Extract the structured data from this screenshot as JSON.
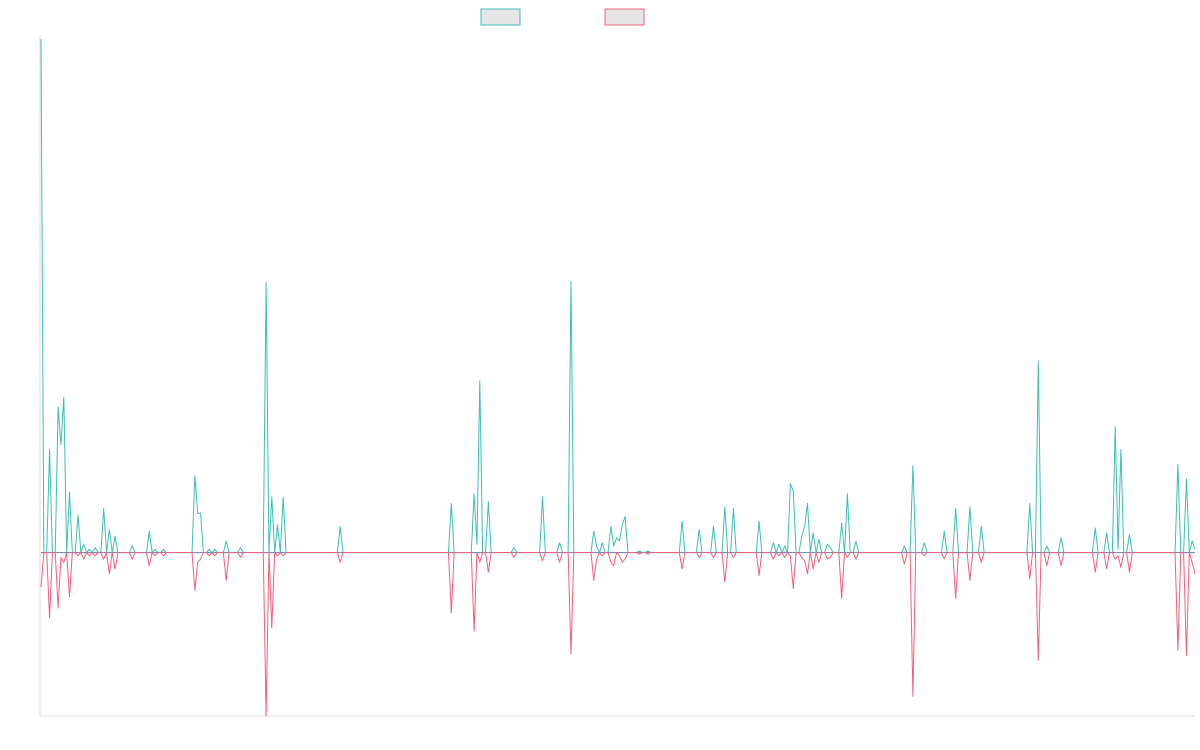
{
  "chart_data": {
    "type": "line",
    "title": "",
    "xlabel": "",
    "ylabel": "",
    "grid": false,
    "legend": "top-center",
    "ylim": [
      -1.0,
      3.16
    ],
    "colors": {
      "series_a": "#3dbfb5",
      "series_b": "#f0607f",
      "baseline": "#7a8fb0",
      "axis": "#dddddd",
      "legend_fill": "#e6e6e6"
    },
    "series": [
      {
        "name": "",
        "color": "#3dbfb5",
        "values": [
          3.14,
          0,
          0,
          0.63,
          0,
          0,
          0.89,
          0.66,
          0.95,
          0,
          0.37,
          0,
          0,
          0.23,
          0,
          0.05,
          0,
          0.02,
          0,
          0.03,
          0,
          0,
          0.27,
          0,
          0.14,
          0,
          0.1,
          0,
          0,
          0,
          0,
          0,
          0.04,
          0,
          0,
          0,
          0,
          0,
          0.13,
          0,
          0.02,
          0,
          0,
          0.02,
          0,
          0,
          0,
          0,
          0,
          0,
          0,
          0,
          0,
          0,
          0.47,
          0.24,
          0.24,
          0,
          0,
          0.02,
          0,
          0.02,
          0,
          0,
          0,
          0.07,
          0,
          0,
          0,
          0,
          0.03,
          0,
          0,
          0,
          0,
          0,
          0,
          0,
          0,
          1.65,
          0,
          0.34,
          0,
          0.17,
          0,
          0.34,
          0,
          0,
          0,
          0,
          0,
          0,
          0,
          0,
          0,
          0,
          0,
          0,
          0,
          0,
          0,
          0,
          0,
          0,
          0,
          0.16,
          0,
          0,
          0,
          0,
          0,
          0,
          0,
          0,
          0,
          0,
          0,
          0,
          0,
          0,
          0,
          0,
          0,
          0,
          0,
          0,
          0,
          0,
          0,
          0,
          0,
          0,
          0,
          0,
          0,
          0,
          0,
          0,
          0,
          0,
          0,
          0,
          0,
          0,
          0.3,
          0,
          0,
          0,
          0,
          0,
          0,
          0,
          0.36,
          0.05,
          1.05,
          0,
          0,
          0.31,
          0,
          0,
          0,
          0,
          0,
          0,
          0,
          0,
          0.03,
          0,
          0,
          0,
          0,
          0,
          0,
          0,
          0,
          0,
          0.34,
          0,
          0,
          0,
          0,
          0,
          0.06,
          0,
          0,
          0,
          1.66,
          0,
          0,
          0,
          0,
          0,
          0,
          0,
          0.13,
          0.04,
          0,
          0.06,
          0,
          0,
          0.16,
          0.04,
          0.09,
          0.07,
          0.17,
          0.22,
          0,
          0,
          0,
          0,
          0.01,
          0,
          0,
          0.01,
          0,
          0,
          0,
          0,
          0,
          0,
          0,
          0,
          0,
          0,
          0,
          0.19,
          0,
          0,
          0,
          0,
          0,
          0.14,
          0,
          0,
          0,
          0,
          0.16,
          0,
          0,
          0,
          0.28,
          0,
          0,
          0.27,
          0,
          0,
          0,
          0,
          0,
          0,
          0,
          0,
          0.19,
          0,
          0,
          0,
          0,
          0.06,
          0,
          0.05,
          0,
          0.04,
          0,
          0.42,
          0.38,
          0,
          0,
          0.1,
          0.16,
          0.3,
          0,
          0.12,
          0,
          0.08,
          0,
          0,
          0.05,
          0.03,
          0,
          0,
          0,
          0.18,
          0,
          0.36,
          0,
          0,
          0.07,
          0,
          0,
          0,
          0,
          0,
          0,
          0,
          0,
          0,
          0,
          0,
          0,
          0,
          0,
          0,
          0,
          0.04,
          0,
          0,
          0.53,
          0,
          0,
          0,
          0.06,
          0,
          0,
          0,
          0,
          0,
          0,
          0.13,
          0,
          0,
          0,
          0.27,
          0,
          0,
          0,
          0,
          0.28,
          0,
          0,
          0,
          0.16,
          0,
          0,
          0,
          0,
          0,
          0,
          0,
          0,
          0,
          0,
          0,
          0,
          0,
          0,
          0,
          0,
          0.3,
          0,
          0,
          1.17,
          0,
          0,
          0.04,
          0,
          0,
          0,
          0,
          0.09,
          0,
          0,
          0,
          0,
          0,
          0,
          0,
          0,
          0,
          0,
          0,
          0.15,
          0,
          0,
          0,
          0.12,
          0,
          0,
          0.77,
          0.02,
          0.63,
          0,
          0,
          0.11,
          0,
          0,
          0,
          0,
          0,
          0,
          0,
          0,
          0,
          0,
          0,
          0,
          0,
          0,
          0,
          0,
          0.54,
          0,
          0,
          0.45,
          0,
          0.07,
          0.02
        ]
      },
      {
        "name": "",
        "color": "#f0607f",
        "values": [
          -0.21,
          0,
          0,
          -0.4,
          0,
          0,
          -0.34,
          -0.03,
          -0.06,
          0,
          -0.27,
          0,
          0,
          -0.02,
          0,
          -0.04,
          0,
          -0.02,
          0,
          -0.02,
          0,
          0,
          -0.04,
          0,
          -0.13,
          0,
          -0.1,
          0,
          0,
          0,
          0,
          0,
          -0.04,
          0,
          0,
          0,
          0,
          0,
          -0.08,
          0,
          -0.02,
          0,
          0,
          -0.02,
          0,
          0,
          0,
          0,
          0,
          0,
          0,
          0,
          0,
          0,
          -0.23,
          -0.06,
          -0.04,
          0,
          0,
          -0.02,
          0,
          -0.02,
          0,
          0,
          0,
          -0.17,
          0,
          0,
          0,
          0,
          -0.03,
          0,
          0,
          0,
          0,
          0,
          0,
          0,
          0,
          -1.0,
          0,
          -0.46,
          0,
          -0.02,
          0,
          -0.02,
          0,
          0,
          0,
          0,
          0,
          0,
          0,
          0,
          0,
          0,
          0,
          0,
          0,
          0,
          0,
          0,
          0,
          0,
          0,
          -0.06,
          0,
          0,
          0,
          0,
          0,
          0,
          0,
          0,
          0,
          0,
          0,
          0,
          0,
          0,
          0,
          0,
          0,
          0,
          0,
          0,
          0,
          0,
          0,
          0,
          0,
          0,
          0,
          0,
          0,
          0,
          0,
          0,
          0,
          0,
          0,
          0,
          0,
          0,
          -0.37,
          0,
          0,
          0,
          0,
          0,
          0,
          0,
          -0.48,
          0,
          -0.06,
          0,
          0,
          -0.12,
          0,
          0,
          0,
          0,
          0,
          0,
          0,
          0,
          -0.03,
          0,
          0,
          0,
          0,
          0,
          0,
          0,
          0,
          0,
          -0.05,
          0,
          0,
          0,
          0,
          0,
          -0.06,
          0,
          0,
          0,
          -0.62,
          0,
          0,
          0,
          0,
          0,
          0,
          0,
          -0.17,
          -0.04,
          0,
          -0.02,
          0,
          0,
          -0.06,
          -0.08,
          0,
          -0.02,
          -0.06,
          -0.04,
          0,
          0,
          0,
          0,
          -0.01,
          0,
          0,
          -0.01,
          0,
          0,
          0,
          0,
          0,
          0,
          0,
          0,
          0,
          0,
          0,
          -0.1,
          0,
          0,
          0,
          0,
          0,
          -0.03,
          0,
          0,
          0,
          0,
          -0.03,
          0,
          0,
          0,
          -0.18,
          0,
          0,
          -0.03,
          0,
          0,
          0,
          0,
          0,
          0,
          0,
          0,
          -0.14,
          0,
          0,
          0,
          0,
          -0.04,
          0,
          -0.02,
          0,
          -0.03,
          0,
          -0.02,
          -0.22,
          0,
          0,
          -0.03,
          -0.05,
          -0.13,
          0,
          -0.1,
          0,
          -0.06,
          0,
          0,
          -0.04,
          -0.03,
          0,
          0,
          0,
          -0.28,
          0,
          -0.03,
          0,
          0,
          -0.04,
          0,
          0,
          0,
          0,
          0,
          0,
          0,
          0,
          0,
          0,
          0,
          0,
          0,
          0,
          0,
          0,
          -0.07,
          0,
          0,
          -0.88,
          0,
          0,
          0,
          -0.02,
          0,
          0,
          0,
          0,
          0,
          0,
          -0.04,
          0,
          0,
          0,
          -0.28,
          0,
          0,
          0,
          0,
          -0.17,
          0,
          0,
          0,
          -0.06,
          0,
          0,
          0,
          0,
          0,
          0,
          0,
          0,
          0,
          0,
          0,
          0,
          0,
          0,
          0,
          0,
          -0.16,
          0,
          0,
          -0.66,
          0,
          0,
          -0.08,
          0,
          0,
          0,
          0,
          -0.08,
          0,
          0,
          0,
          0,
          0,
          0,
          0,
          0,
          0,
          0,
          0,
          -0.12,
          0,
          0,
          0,
          -0.1,
          0,
          0,
          -0.04,
          -0.02,
          -0.09,
          0,
          0,
          -0.12,
          0,
          0,
          0,
          0,
          0,
          0,
          0,
          0,
          0,
          0,
          0,
          0,
          0,
          0,
          0,
          0,
          -0.6,
          0,
          0,
          -0.63,
          0,
          -0.06,
          -0.13
        ]
      }
    ]
  }
}
